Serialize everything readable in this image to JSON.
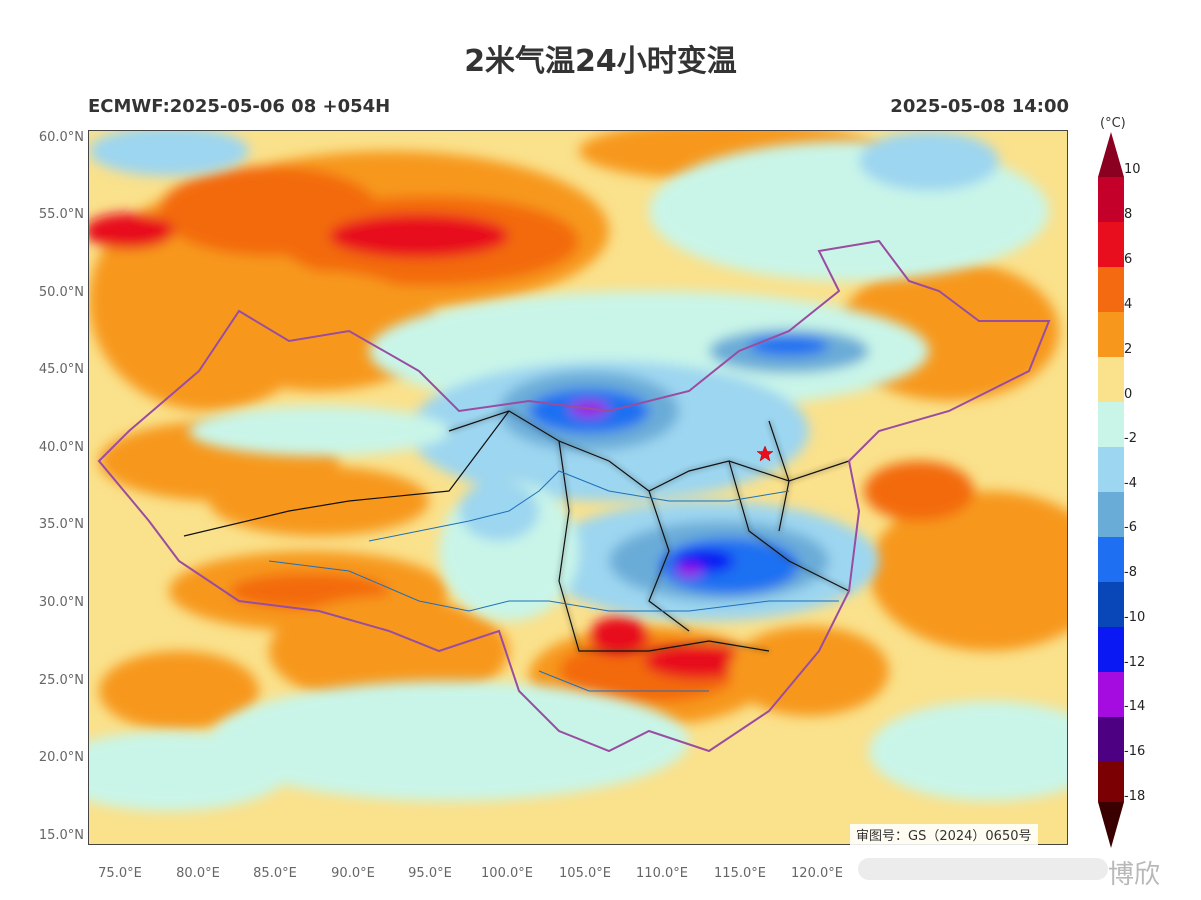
{
  "title": "2米气温24小时变温",
  "left_header": "ECMWF:2025-05-06 08 +054H",
  "right_header": "2025-05-08 14:00",
  "unit": "(°C)",
  "audit_number": "审图号：GS（2024）0650号",
  "watermark_text": "博欣",
  "lat_ticks": [
    "60.0°N",
    "55.0°N",
    "50.0°N",
    "45.0°N",
    "40.0°N",
    "35.0°N",
    "30.0°N",
    "25.0°N",
    "20.0°N",
    "15.0°N"
  ],
  "lon_ticks": [
    "75.0°E",
    "80.0°E",
    "85.0°E",
    "90.0°E",
    "95.0°E",
    "100.0°E",
    "105.0°E",
    "110.0°E",
    "115.0°E",
    "120.0°E"
  ],
  "colorbar": {
    "labels": [
      "10",
      "8",
      "6",
      "4",
      "2",
      "0",
      "-2",
      "-4",
      "-6",
      "-8",
      "-10",
      "-12",
      "-14",
      "-16",
      "-18"
    ],
    "colors": [
      "#8b0020",
      "#c4002a",
      "#e80e1d",
      "#f36a10",
      "#f7981c",
      "#fae18c",
      "#c9f5e8",
      "#9dd6f0",
      "#6aacd8",
      "#1f6ff2",
      "#0946b8",
      "#0a18f4",
      "#a50ce0",
      "#4d0082",
      "#7a0004"
    ]
  }
}
